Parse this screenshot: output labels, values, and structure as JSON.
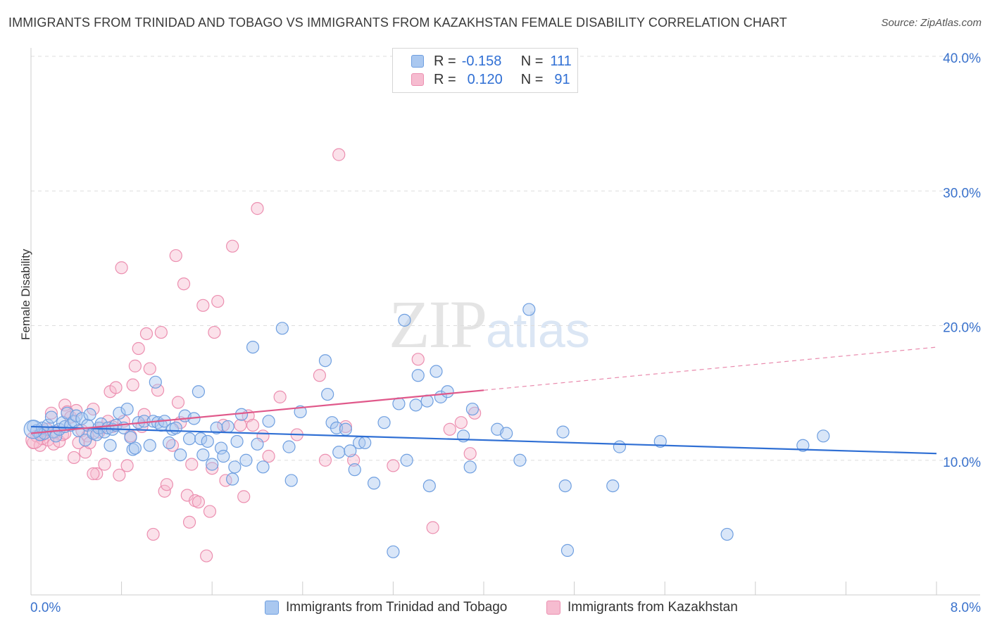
{
  "header": {
    "title": "IMMIGRANTS FROM TRINIDAD AND TOBAGO VS IMMIGRANTS FROM KAZAKHSTAN FEMALE DISABILITY CORRELATION CHART",
    "source": "Source: ZipAtlas.com"
  },
  "watermark": {
    "zip": "ZIP",
    "atlas": "atlas"
  },
  "legend": {
    "rows": [
      {
        "r_label": "R =",
        "r_value": "-0.158",
        "n_label": "N =",
        "n_value": "111"
      },
      {
        "r_label": "R =",
        "r_value": "0.120",
        "n_label": "N =",
        "n_value": "91"
      }
    ]
  },
  "chart_data": {
    "type": "scatter",
    "title": "IMMIGRANTS FROM TRINIDAD AND TOBAGO VS IMMIGRANTS FROM KAZAKHSTAN FEMALE DISABILITY CORRELATION CHART",
    "ylabel": "Female Disability",
    "xlabel": "",
    "xlim": [
      0,
      8
    ],
    "ylim": [
      0,
      40
    ],
    "x_tick_labels": [
      "0.0%",
      "8.0%"
    ],
    "y_tick_labels": [
      "10.0%",
      "20.0%",
      "30.0%",
      "40.0%"
    ],
    "y_ticks": [
      10,
      20,
      30,
      40
    ],
    "grid": true,
    "legend_position": "top-center",
    "colors": {
      "blue_fill": "#aac8f0",
      "blue_stroke": "#6f9fe0",
      "blue_line": "#2f6fd4",
      "pink_fill": "#f6bcd0",
      "pink_stroke": "#ec8fb0",
      "pink_line": "#e0588a",
      "axis_text": "#3a72cc"
    },
    "series": [
      {
        "name": "Immigrants from Trinidad and Tobago",
        "r": -0.158,
        "n": 111,
        "trend": {
          "x": [
            0,
            8
          ],
          "y": [
            12.5,
            10.5
          ]
        },
        "points": [
          [
            0.02,
            12.5
          ],
          [
            0.05,
            12.2
          ],
          [
            0.08,
            11.9
          ],
          [
            0.1,
            12.4
          ],
          [
            0.12,
            12.0
          ],
          [
            0.15,
            12.6
          ],
          [
            0.18,
            13.2
          ],
          [
            0.2,
            12.1
          ],
          [
            0.22,
            11.8
          ],
          [
            0.25,
            12.3
          ],
          [
            0.28,
            12.8
          ],
          [
            0.3,
            12.5
          ],
          [
            0.32,
            13.5
          ],
          [
            0.35,
            12.6
          ],
          [
            0.38,
            12.9
          ],
          [
            0.4,
            13.3
          ],
          [
            0.42,
            12.2
          ],
          [
            0.45,
            13.1
          ],
          [
            0.48,
            11.5
          ],
          [
            0.5,
            12.6
          ],
          [
            0.52,
            13.4
          ],
          [
            0.55,
            12.0
          ],
          [
            0.58,
            11.9
          ],
          [
            0.6,
            12.4
          ],
          [
            0.62,
            12.7
          ],
          [
            0.65,
            12.1
          ],
          [
            0.68,
            12.4
          ],
          [
            0.7,
            11.1
          ],
          [
            0.72,
            12.3
          ],
          [
            0.75,
            12.6
          ],
          [
            0.78,
            13.5
          ],
          [
            0.82,
            12.4
          ],
          [
            0.85,
            13.8
          ],
          [
            0.88,
            11.7
          ],
          [
            0.9,
            10.8
          ],
          [
            0.92,
            10.9
          ],
          [
            0.95,
            12.8
          ],
          [
            1.0,
            12.9
          ],
          [
            1.05,
            11.1
          ],
          [
            1.08,
            12.9
          ],
          [
            1.1,
            15.8
          ],
          [
            1.12,
            12.8
          ],
          [
            1.15,
            12.6
          ],
          [
            1.18,
            12.9
          ],
          [
            1.22,
            11.3
          ],
          [
            1.25,
            12.3
          ],
          [
            1.28,
            12.4
          ],
          [
            1.32,
            10.4
          ],
          [
            1.36,
            13.3
          ],
          [
            1.4,
            11.6
          ],
          [
            1.44,
            13.1
          ],
          [
            1.48,
            15.1
          ],
          [
            1.5,
            11.6
          ],
          [
            1.52,
            10.4
          ],
          [
            1.56,
            11.4
          ],
          [
            1.6,
            9.7
          ],
          [
            1.64,
            12.4
          ],
          [
            1.68,
            10.9
          ],
          [
            1.7,
            10.3
          ],
          [
            1.74,
            12.5
          ],
          [
            1.78,
            8.6
          ],
          [
            1.8,
            9.5
          ],
          [
            1.82,
            11.4
          ],
          [
            1.86,
            13.4
          ],
          [
            1.9,
            10.0
          ],
          [
            1.96,
            18.4
          ],
          [
            2.0,
            11.2
          ],
          [
            2.05,
            9.5
          ],
          [
            2.1,
            12.9
          ],
          [
            2.22,
            19.8
          ],
          [
            2.28,
            11.0
          ],
          [
            2.3,
            8.5
          ],
          [
            2.38,
            13.6
          ],
          [
            2.6,
            17.4
          ],
          [
            2.62,
            14.9
          ],
          [
            2.66,
            12.8
          ],
          [
            2.7,
            12.4
          ],
          [
            2.72,
            10.6
          ],
          [
            2.78,
            12.3
          ],
          [
            2.82,
            10.7
          ],
          [
            2.86,
            9.3
          ],
          [
            2.9,
            11.3
          ],
          [
            2.95,
            11.3
          ],
          [
            3.03,
            8.3
          ],
          [
            3.12,
            12.8
          ],
          [
            3.2,
            3.2
          ],
          [
            3.25,
            14.2
          ],
          [
            3.3,
            20.4
          ],
          [
            3.32,
            10.0
          ],
          [
            3.4,
            14.1
          ],
          [
            3.42,
            16.3
          ],
          [
            3.5,
            14.4
          ],
          [
            3.52,
            8.1
          ],
          [
            3.58,
            16.6
          ],
          [
            3.62,
            14.7
          ],
          [
            3.68,
            15.1
          ],
          [
            3.82,
            11.8
          ],
          [
            3.88,
            9.5
          ],
          [
            3.9,
            13.8
          ],
          [
            4.12,
            12.3
          ],
          [
            4.2,
            12.0
          ],
          [
            4.32,
            10.0
          ],
          [
            4.4,
            21.2
          ],
          [
            4.7,
            12.1
          ],
          [
            4.72,
            8.1
          ],
          [
            4.74,
            3.3
          ],
          [
            5.14,
            8.1
          ],
          [
            5.2,
            11.0
          ],
          [
            5.56,
            11.4
          ],
          [
            6.15,
            4.5
          ],
          [
            6.82,
            11.1
          ],
          [
            7.0,
            11.8
          ]
        ]
      },
      {
        "name": "Immigrants from Kazakhstan",
        "r": 0.12,
        "n": 91,
        "trend": {
          "x": [
            0,
            4.0
          ],
          "y": [
            12.0,
            15.2
          ]
        },
        "trend_extension": {
          "x": [
            4.0,
            8
          ],
          "y": [
            15.2,
            18.4
          ]
        },
        "points": [
          [
            0.02,
            11.3
          ],
          [
            0.05,
            11.8
          ],
          [
            0.08,
            11.1
          ],
          [
            0.1,
            11.6
          ],
          [
            0.12,
            12.0
          ],
          [
            0.15,
            11.5
          ],
          [
            0.18,
            13.5
          ],
          [
            0.2,
            11.2
          ],
          [
            0.22,
            12.1
          ],
          [
            0.25,
            11.4
          ],
          [
            0.28,
            11.9
          ],
          [
            0.3,
            14.1
          ],
          [
            0.32,
            13.6
          ],
          [
            0.35,
            13.2
          ],
          [
            0.38,
            10.2
          ],
          [
            0.4,
            13.7
          ],
          [
            0.42,
            11.3
          ],
          [
            0.45,
            12.2
          ],
          [
            0.48,
            10.6
          ],
          [
            0.5,
            11.8
          ],
          [
            0.52,
            11.3
          ],
          [
            0.55,
            13.8
          ],
          [
            0.58,
            9.0
          ],
          [
            0.6,
            12.1
          ],
          [
            0.62,
            12.4
          ],
          [
            0.65,
            9.7
          ],
          [
            0.68,
            12.9
          ],
          [
            0.7,
            15.1
          ],
          [
            0.72,
            12.5
          ],
          [
            0.75,
            15.4
          ],
          [
            0.78,
            8.9
          ],
          [
            0.8,
            24.3
          ],
          [
            0.82,
            12.9
          ],
          [
            0.85,
            9.6
          ],
          [
            0.88,
            11.8
          ],
          [
            0.9,
            15.6
          ],
          [
            0.92,
            17.0
          ],
          [
            0.95,
            18.3
          ],
          [
            0.98,
            12.5
          ],
          [
            1.0,
            13.4
          ],
          [
            1.02,
            19.4
          ],
          [
            1.05,
            16.8
          ],
          [
            1.08,
            4.5
          ],
          [
            1.12,
            15.2
          ],
          [
            1.15,
            19.5
          ],
          [
            1.18,
            7.7
          ],
          [
            1.2,
            8.2
          ],
          [
            1.25,
            11.1
          ],
          [
            1.28,
            25.2
          ],
          [
            1.3,
            14.3
          ],
          [
            1.32,
            12.8
          ],
          [
            1.35,
            23.1
          ],
          [
            1.38,
            7.4
          ],
          [
            1.4,
            5.4
          ],
          [
            1.42,
            9.7
          ],
          [
            1.45,
            7.0
          ],
          [
            1.48,
            6.9
          ],
          [
            1.52,
            21.5
          ],
          [
            1.55,
            2.9
          ],
          [
            1.58,
            6.2
          ],
          [
            1.6,
            9.4
          ],
          [
            1.62,
            19.5
          ],
          [
            1.65,
            21.8
          ],
          [
            1.7,
            12.6
          ],
          [
            1.72,
            8.5
          ],
          [
            1.78,
            25.9
          ],
          [
            1.85,
            12.6
          ],
          [
            1.88,
            7.3
          ],
          [
            1.92,
            13.3
          ],
          [
            1.96,
            12.6
          ],
          [
            2.0,
            28.7
          ],
          [
            2.05,
            11.8
          ],
          [
            2.1,
            10.3
          ],
          [
            2.2,
            14.7
          ],
          [
            2.35,
            11.9
          ],
          [
            2.55,
            16.3
          ],
          [
            2.6,
            10.0
          ],
          [
            2.72,
            32.7
          ],
          [
            2.78,
            12.5
          ],
          [
            2.85,
            10.0
          ],
          [
            3.2,
            9.6
          ],
          [
            3.42,
            17.5
          ],
          [
            3.55,
            5.0
          ],
          [
            3.7,
            12.3
          ],
          [
            3.8,
            12.8
          ],
          [
            3.88,
            10.5
          ],
          [
            3.92,
            13.5
          ],
          [
            0.55,
            9.0
          ],
          [
            0.1,
            11.9
          ],
          [
            0.14,
            12.3
          ],
          [
            0.3,
            12.0
          ]
        ]
      }
    ]
  },
  "bottom_legend": {
    "items": [
      {
        "label": "Immigrants from Trinidad and Tobago"
      },
      {
        "label": "Immigrants from Kazakhstan"
      }
    ]
  }
}
